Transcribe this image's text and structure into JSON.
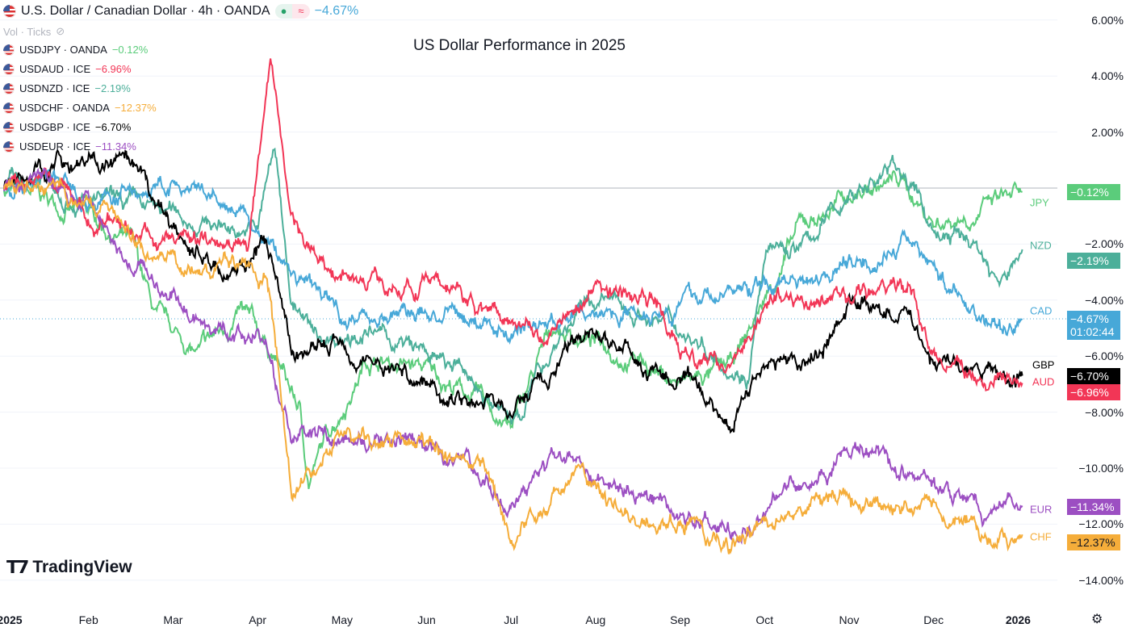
{
  "header": {
    "title": "U.S. Dollar / Canadian Dollar · 4h · OANDA",
    "change": "−4.67%",
    "vol_label": "Vol · Ticks"
  },
  "legend": [
    {
      "symbol": "USDJPY · OANDA",
      "change": "−0.12%",
      "color": "#5bcc7b"
    },
    {
      "symbol": "USDAUD · ICE",
      "change": "−6.96%",
      "color": "#f23656"
    },
    {
      "symbol": "USDNZD · ICE",
      "change": "−2.19%",
      "color": "#4caf9a"
    },
    {
      "symbol": "USDCHF · OANDA",
      "change": "−12.37%",
      "color": "#f5ad3a"
    },
    {
      "symbol": "USDGBP · ICE",
      "change": "−6.70%",
      "color": "#000000"
    },
    {
      "symbol": "USDEUR · ICE",
      "change": "−11.34%",
      "color": "#9c4fc2"
    }
  ],
  "logo": "TradingView",
  "chart_data": {
    "type": "line",
    "title": "US Dollar Performance in 2025",
    "x_unit": "months since 2025-01-01",
    "ylim": [
      -14,
      6
    ],
    "y_ticks": [
      "6.00%",
      "4.00%",
      "2.00%",
      "−2.00%",
      "−4.00%",
      "−6.00%",
      "−8.00%",
      "−10.00%",
      "−12.00%",
      "−14.00%"
    ],
    "y_tick_values": [
      6,
      4,
      2,
      -2,
      -4,
      -6,
      -8,
      -10,
      -12,
      -14
    ],
    "x_ticks": [
      "2025",
      "Feb",
      "Mar",
      "Apr",
      "May",
      "Jun",
      "Jul",
      "Aug",
      "Sep",
      "Oct",
      "Nov",
      "Dec",
      "2026"
    ],
    "series": [
      {
        "name": "JPY",
        "color": "#5bcc7b",
        "last": "−0.12%",
        "points": [
          [
            0,
            0
          ],
          [
            0.5,
            -0.5
          ],
          [
            1,
            -1
          ],
          [
            1.5,
            -2
          ],
          [
            1.8,
            -4.8
          ],
          [
            2.3,
            -6
          ],
          [
            2.8,
            -4.5
          ],
          [
            3.2,
            -6
          ],
          [
            3.5,
            -8
          ],
          [
            3.6,
            -10.5
          ],
          [
            3.8,
            -9
          ],
          [
            4.3,
            -6
          ],
          [
            5,
            -6.5
          ],
          [
            5.6,
            -7.5
          ],
          [
            6,
            -8.6
          ],
          [
            6.5,
            -5
          ],
          [
            7,
            -5.5
          ],
          [
            7.5,
            -6
          ],
          [
            8,
            -7
          ],
          [
            8.6,
            -6.5
          ],
          [
            9,
            -4
          ],
          [
            9.4,
            -1.5
          ],
          [
            10,
            -0.3
          ],
          [
            10.6,
            0.3
          ],
          [
            11,
            -1.2
          ],
          [
            11.5,
            -0.8
          ],
          [
            12.05,
            -0.12
          ]
        ]
      },
      {
        "name": "NZD",
        "color": "#4caf9a",
        "last": "−2.19%",
        "points": [
          [
            0,
            0
          ],
          [
            0.5,
            0.5
          ],
          [
            1,
            -0.5
          ],
          [
            2,
            -1
          ],
          [
            3,
            -1.5
          ],
          [
            3.2,
            1.5
          ],
          [
            3.4,
            -4
          ],
          [
            3.7,
            -5.5
          ],
          [
            4.2,
            -5
          ],
          [
            5,
            -6
          ],
          [
            5.6,
            -7
          ],
          [
            6,
            -8.5
          ],
          [
            6.6,
            -5
          ],
          [
            7,
            -4
          ],
          [
            7.6,
            -4.5
          ],
          [
            8,
            -5
          ],
          [
            8.8,
            -6.5
          ],
          [
            9,
            -2.5
          ],
          [
            9.5,
            -2
          ],
          [
            10,
            -0.2
          ],
          [
            10.6,
            0.8
          ],
          [
            11,
            -1.5
          ],
          [
            11.5,
            -2
          ],
          [
            11.8,
            -3.5
          ],
          [
            12.05,
            -2.19
          ]
        ]
      },
      {
        "name": "CAD",
        "color": "#47a8d8",
        "last": "−4.67%",
        "points": [
          [
            0,
            0
          ],
          [
            0.5,
            0.5
          ],
          [
            1,
            -0.5
          ],
          [
            2,
            0
          ],
          [
            2.8,
            -1
          ],
          [
            3.4,
            -3
          ],
          [
            4,
            -4.5
          ],
          [
            5,
            -4.5
          ],
          [
            6,
            -5
          ],
          [
            7,
            -4.5
          ],
          [
            8,
            -4
          ],
          [
            9,
            -3.5
          ],
          [
            10,
            -2.5
          ],
          [
            10.8,
            -2
          ],
          [
            11.3,
            -4
          ],
          [
            11.8,
            -5
          ],
          [
            12.05,
            -4.67
          ]
        ]
      },
      {
        "name": "GBP",
        "color": "#000000",
        "last": "−6.70%",
        "points": [
          [
            0,
            0
          ],
          [
            0.6,
            1
          ],
          [
            1,
            1
          ],
          [
            1.4,
            0.8
          ],
          [
            2,
            -1.5
          ],
          [
            2.6,
            -3
          ],
          [
            3.1,
            -2
          ],
          [
            3.4,
            -6
          ],
          [
            4,
            -5.5
          ],
          [
            5,
            -7
          ],
          [
            5.6,
            -7.5
          ],
          [
            6,
            -8
          ],
          [
            6.5,
            -6.5
          ],
          [
            7,
            -5
          ],
          [
            7.6,
            -6.5
          ],
          [
            8,
            -7
          ],
          [
            8.6,
            -8.3
          ],
          [
            9,
            -6
          ],
          [
            9.5,
            -6.5
          ],
          [
            10,
            -4
          ],
          [
            10.7,
            -4.5
          ],
          [
            11,
            -6
          ],
          [
            11.6,
            -6.8
          ],
          [
            12.05,
            -6.7
          ]
        ]
      },
      {
        "name": "AUD",
        "color": "#f23656",
        "last": "−6.96%",
        "points": [
          [
            0,
            0
          ],
          [
            0.5,
            0.5
          ],
          [
            1,
            -1
          ],
          [
            2,
            -2
          ],
          [
            2.9,
            -1.5
          ],
          [
            3.15,
            4.3
          ],
          [
            3.4,
            -1
          ],
          [
            3.7,
            -2.5
          ],
          [
            4,
            -3
          ],
          [
            5,
            -3.5
          ],
          [
            6,
            -4.5
          ],
          [
            6.5,
            -5
          ],
          [
            7,
            -3.5
          ],
          [
            7.7,
            -4
          ],
          [
            8,
            -6
          ],
          [
            8.5,
            -6.5
          ],
          [
            9,
            -4
          ],
          [
            10,
            -4
          ],
          [
            10.7,
            -3.5
          ],
          [
            11,
            -6
          ],
          [
            11.6,
            -7
          ],
          [
            12.05,
            -6.96
          ]
        ]
      },
      {
        "name": "EUR",
        "color": "#9c4fc2",
        "last": "−11.34%",
        "points": [
          [
            0,
            0
          ],
          [
            0.5,
            0.3
          ],
          [
            1,
            -0.5
          ],
          [
            2,
            -4
          ],
          [
            2.8,
            -5.5
          ],
          [
            3.1,
            -5.5
          ],
          [
            3.4,
            -9
          ],
          [
            4,
            -9
          ],
          [
            5,
            -9.5
          ],
          [
            5.6,
            -10
          ],
          [
            6,
            -11.5
          ],
          [
            6.8,
            -9.2
          ],
          [
            7.2,
            -11
          ],
          [
            8,
            -11.5
          ],
          [
            8.6,
            -12.3
          ],
          [
            9,
            -11
          ],
          [
            10,
            -9.5
          ],
          [
            10.5,
            -10
          ],
          [
            11,
            -10.5
          ],
          [
            11.6,
            -11.8
          ],
          [
            12.05,
            -11.34
          ]
        ]
      },
      {
        "name": "CHF",
        "color": "#f5ad3a",
        "last": "−12.37%",
        "points": [
          [
            0,
            0
          ],
          [
            0.5,
            0
          ],
          [
            1,
            -0.5
          ],
          [
            2,
            -2.5
          ],
          [
            2.8,
            -3
          ],
          [
            3.1,
            -3.5
          ],
          [
            3.4,
            -10.5
          ],
          [
            4,
            -9
          ],
          [
            5,
            -9.5
          ],
          [
            5.6,
            -10
          ],
          [
            6,
            -12.5
          ],
          [
            6.8,
            -10
          ],
          [
            7.2,
            -11.5
          ],
          [
            8,
            -12
          ],
          [
            8.6,
            -13
          ],
          [
            9,
            -12
          ],
          [
            10,
            -11
          ],
          [
            10.5,
            -11.5
          ],
          [
            11,
            -11
          ],
          [
            11.5,
            -12
          ],
          [
            11.7,
            -12.8
          ],
          [
            12.05,
            -12.37
          ]
        ]
      }
    ],
    "cad_countdown": "01:02:44",
    "grid": true
  }
}
